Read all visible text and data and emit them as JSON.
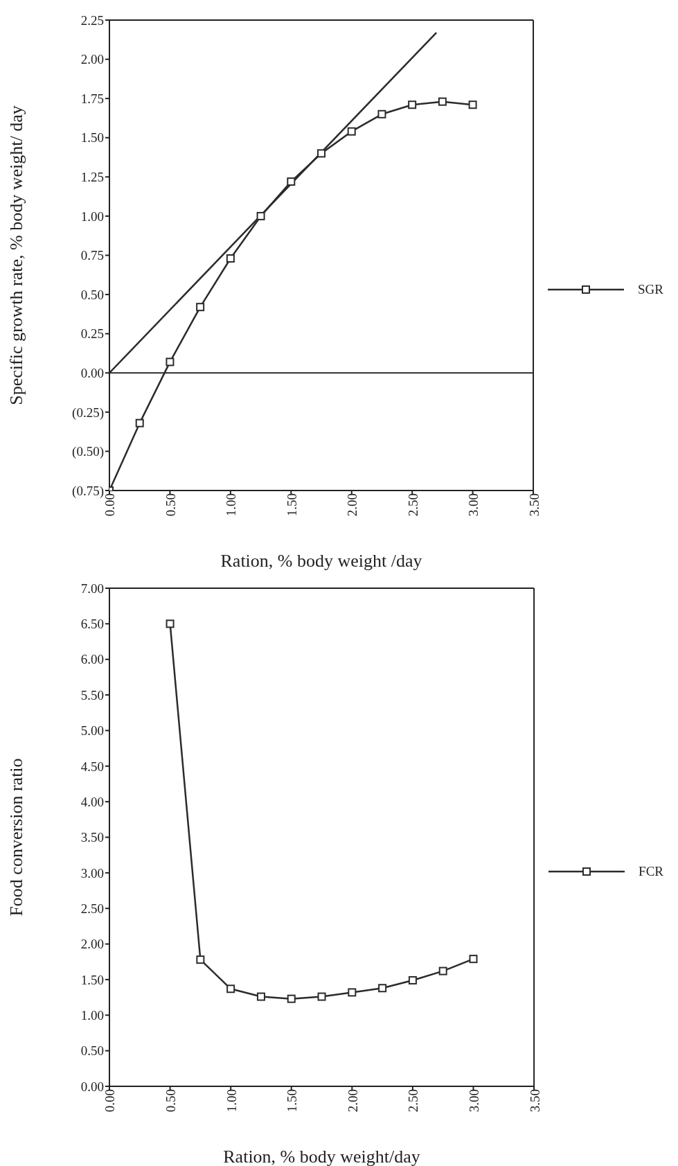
{
  "chart_data": [
    {
      "type": "line",
      "xlabel": "Ration, % body weight /day",
      "ylabel": "Specific growth rate, % body weight/ day",
      "series": [
        {
          "name": "SGR",
          "color": "#2b2b2b",
          "x": [
            0,
            0.25,
            0.5,
            0.75,
            1,
            1.25,
            1.5,
            1.75,
            2,
            2.25,
            2.5,
            2.75,
            3
          ],
          "values": [
            -0.75,
            -0.32,
            0.07,
            0.42,
            0.73,
            1.0,
            1.22,
            1.4,
            1.54,
            1.65,
            1.71,
            1.73,
            1.71
          ],
          "marker": "square"
        },
        {
          "color": "#2b2b2b",
          "x": [
            0,
            2.7
          ],
          "values": [
            0,
            2.17
          ],
          "marker": "none"
        }
      ],
      "xlim": [
        0,
        3.5
      ],
      "xticks": [
        {
          "value": 0,
          "label": "0.00"
        },
        {
          "value": 0.5,
          "label": "0.50"
        },
        {
          "value": 1,
          "label": "1.00"
        },
        {
          "value": 1.5,
          "label": "1.50"
        },
        {
          "value": 2,
          "label": "2.00"
        },
        {
          "value": 2.5,
          "label": "2.50"
        },
        {
          "value": 3,
          "label": "3.00"
        },
        {
          "value": 3.5,
          "label": "3.50"
        }
      ],
      "ylim": [
        -0.75,
        2.25
      ],
      "yticks": [
        {
          "value": -0.75,
          "label": "(0.75)"
        },
        {
          "value": -0.5,
          "label": "(0.50)"
        },
        {
          "value": -0.25,
          "label": "(0.25)"
        },
        {
          "value": 0,
          "label": "0.00"
        },
        {
          "value": 0.25,
          "label": "0.25"
        },
        {
          "value": 0.5,
          "label": "0.50"
        },
        {
          "value": 0.75,
          "label": "0.75"
        },
        {
          "value": 1,
          "label": "1.00"
        },
        {
          "value": 1.25,
          "label": "1.25"
        },
        {
          "value": 1.5,
          "label": "1.50"
        },
        {
          "value": 1.75,
          "label": "1.75"
        },
        {
          "value": 2,
          "label": "2.00"
        },
        {
          "value": 2.25,
          "label": "2.25"
        }
      ],
      "ref_lines": [
        {
          "axis": "y",
          "value": 0,
          "color": "#2b2b2b"
        }
      ],
      "grid": false,
      "legend": "right",
      "line_style": "solid"
    },
    {
      "type": "line",
      "xlabel": "Ration, % body weight/day",
      "ylabel": "Food conversion ratio",
      "series": [
        {
          "name": "FCR",
          "color": "#2b2b2b",
          "x": [
            0.5,
            0.75,
            1,
            1.25,
            1.5,
            1.75,
            2,
            2.25,
            2.5,
            2.75,
            3
          ],
          "values": [
            6.5,
            1.78,
            1.37,
            1.26,
            1.23,
            1.26,
            1.32,
            1.38,
            1.49,
            1.62,
            1.79
          ],
          "marker": "square"
        }
      ],
      "xlim": [
        0,
        3.5
      ],
      "xticks": [
        {
          "value": 0,
          "label": "0.00"
        },
        {
          "value": 0.5,
          "label": "0.50"
        },
        {
          "value": 1,
          "label": "1.00"
        },
        {
          "value": 1.5,
          "label": "1.50"
        },
        {
          "value": 2,
          "label": "2.00"
        },
        {
          "value": 2.5,
          "label": "2.50"
        },
        {
          "value": 3,
          "label": "3.00"
        },
        {
          "value": 3.5,
          "label": "3.50"
        }
      ],
      "ylim": [
        0,
        7
      ],
      "yticks": [
        {
          "value": 0,
          "label": "0.00"
        },
        {
          "value": 0.5,
          "label": "0.50"
        },
        {
          "value": 1,
          "label": "1.00"
        },
        {
          "value": 1.5,
          "label": "1.50"
        },
        {
          "value": 2,
          "label": "2.00"
        },
        {
          "value": 2.5,
          "label": "2.50"
        },
        {
          "value": 3,
          "label": "3.00"
        },
        {
          "value": 3.5,
          "label": "3.50"
        },
        {
          "value": 4,
          "label": "4.00"
        },
        {
          "value": 4.5,
          "label": "4.50"
        },
        {
          "value": 5,
          "label": "5.00"
        },
        {
          "value": 5.5,
          "label": "5.50"
        },
        {
          "value": 6,
          "label": "6.00"
        },
        {
          "value": 6.5,
          "label": "6.50"
        },
        {
          "value": 7,
          "label": "7.00"
        }
      ],
      "grid": false,
      "legend": "right",
      "line_style": "solid"
    }
  ]
}
